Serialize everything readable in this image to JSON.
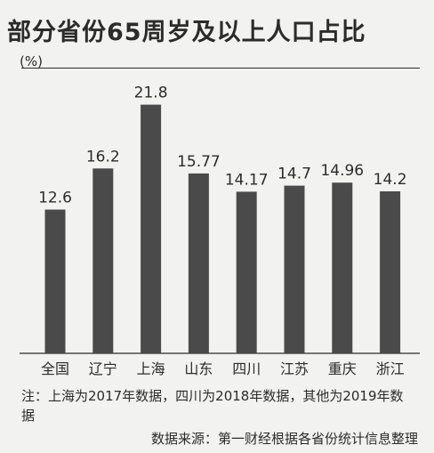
{
  "title": "部分省份65周岁及以上人口占比",
  "unit_label": "(%)",
  "note": "注：上海为2017年数据，四川为2018年数据，其他为2019年数据",
  "source": "数据来源：第一财经根据各省份统计信息整理",
  "colors": {
    "bar": "#4a4a4a",
    "text": "#2b2b2b",
    "background": "#f2f2f0"
  },
  "chart_data": {
    "type": "bar",
    "title": "部分省份65周岁及以上人口占比",
    "ylabel": "(%)",
    "categories": [
      "全国",
      "辽宁",
      "上海",
      "山东",
      "四川",
      "江苏",
      "重庆",
      "浙江"
    ],
    "values": [
      12.6,
      16.2,
      21.8,
      15.77,
      14.17,
      14.7,
      14.96,
      14.2
    ],
    "value_labels": [
      "12.6",
      "16.2",
      "21.8",
      "15.77",
      "14.17",
      "14.7",
      "14.96",
      "14.2"
    ],
    "ylim": [
      0,
      22
    ],
    "grid": false,
    "legend": "none"
  }
}
